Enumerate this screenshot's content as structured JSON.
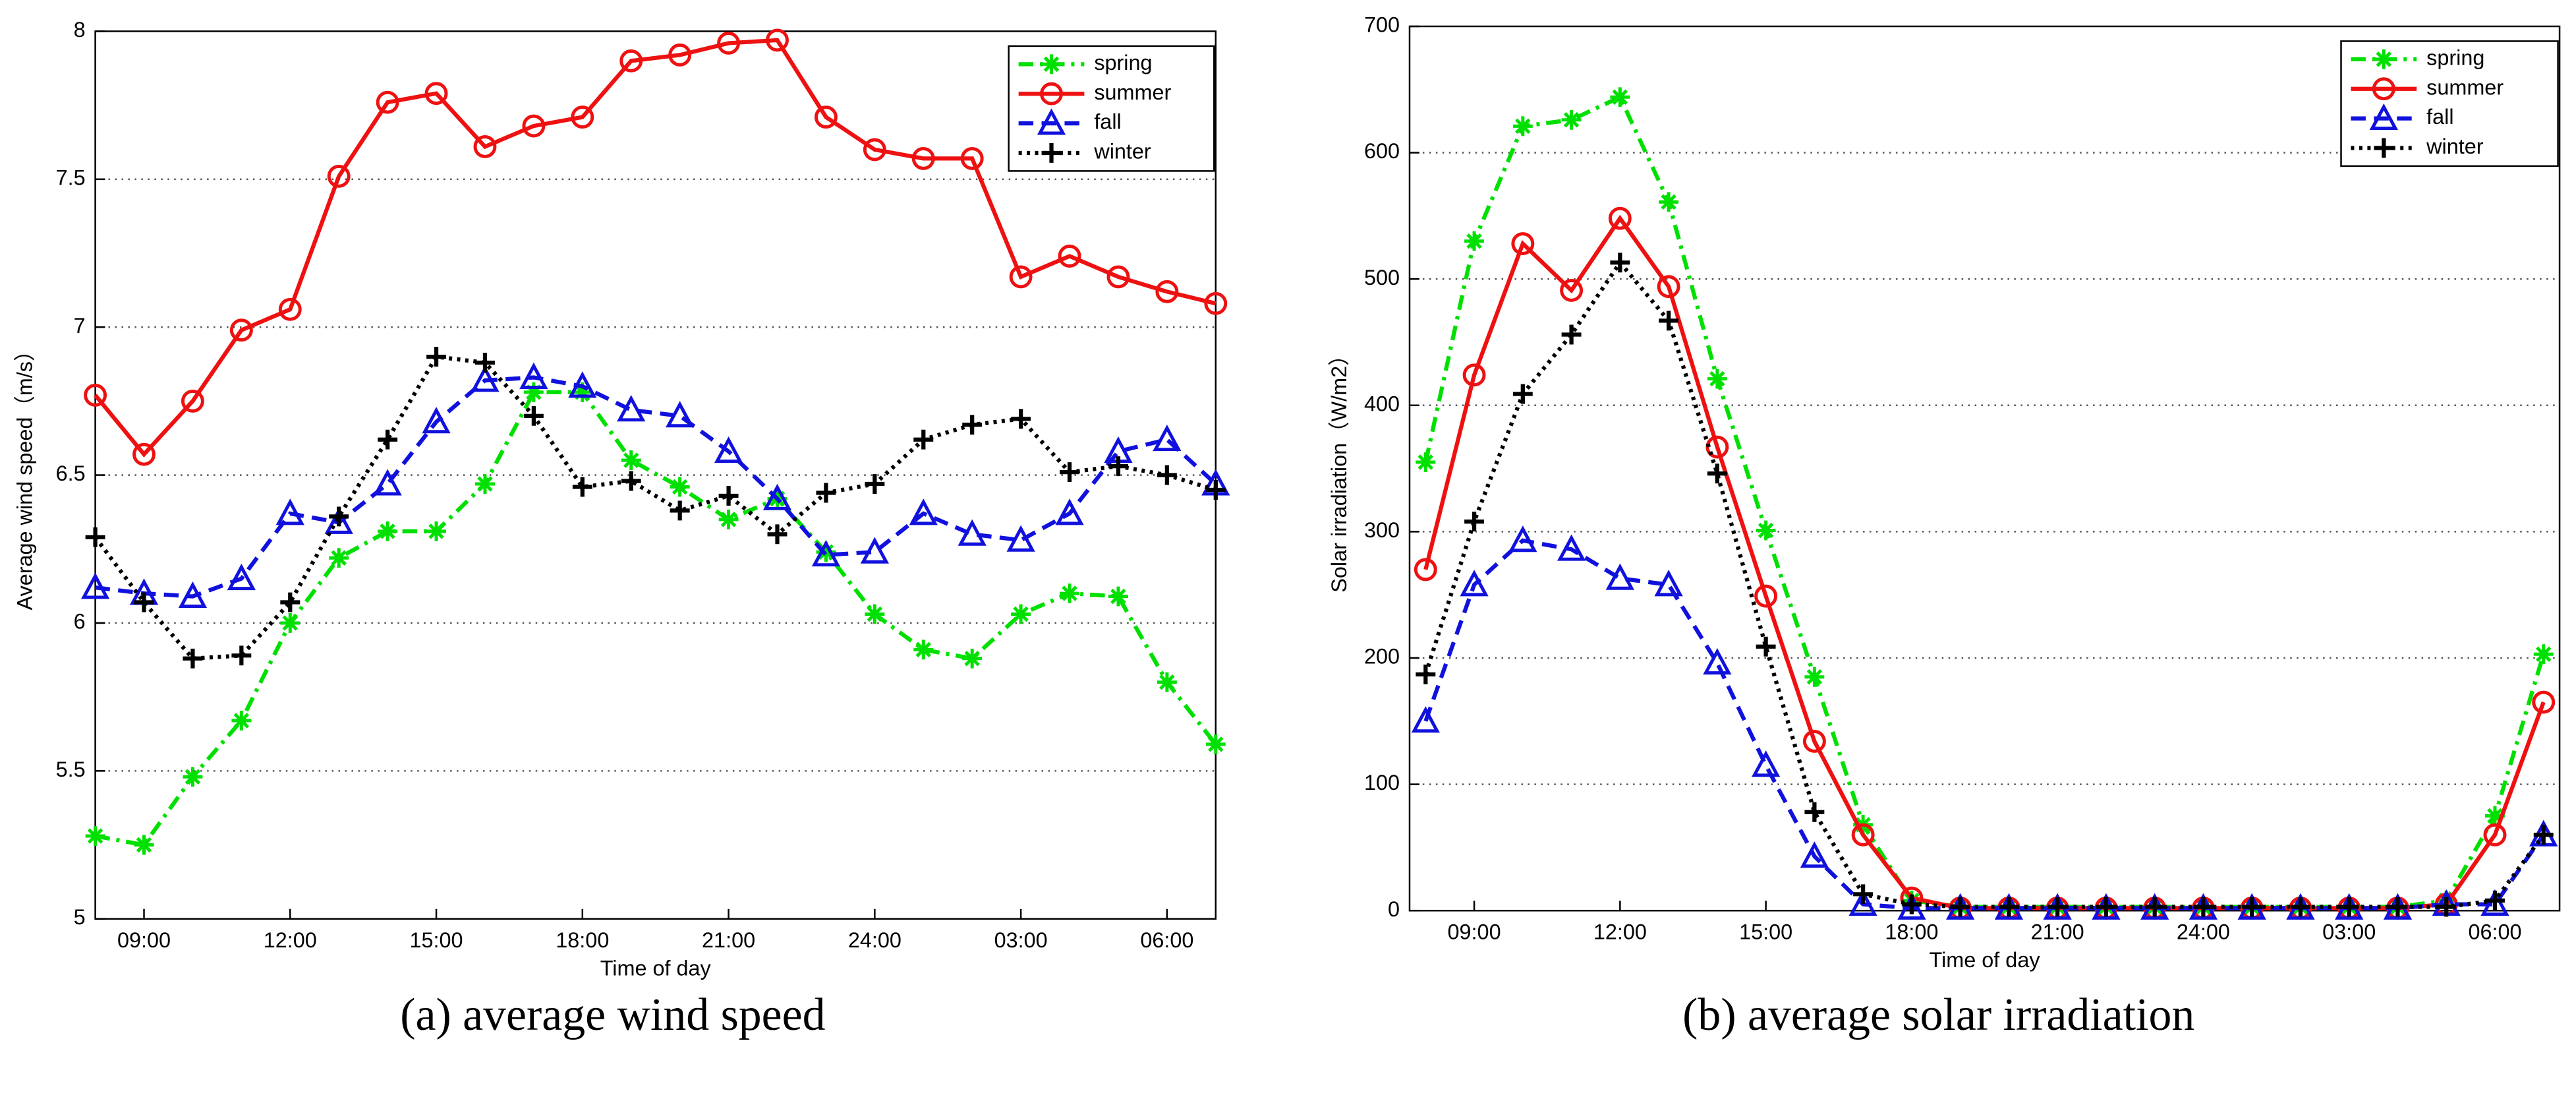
{
  "chart_data": [
    {
      "type": "line",
      "caption": "(a)  average wind speed",
      "x_label": "Time of day",
      "y_label": "Average wind speed（m/s）",
      "categories": [
        null,
        "09:00",
        null,
        null,
        "12:00",
        null,
        null,
        "15:00",
        null,
        null,
        "18:00",
        null,
        null,
        "21:00",
        null,
        null,
        "24:00",
        null,
        null,
        "03:00",
        null,
        null,
        "06:00",
        null
      ],
      "ylim": [
        5,
        8
      ],
      "yticks": [
        5,
        5.5,
        6,
        6.5,
        7,
        7.5,
        8
      ],
      "grid": true,
      "legend": "upper right",
      "series": [
        {
          "name": "spring",
          "color": "#00e000",
          "linestyle": "dashdot",
          "marker": "star",
          "values": [
            5.28,
            5.25,
            5.48,
            5.67,
            6.0,
            6.22,
            6.31,
            6.31,
            6.47,
            6.78,
            6.78,
            6.55,
            6.46,
            6.35,
            6.42,
            6.24,
            6.03,
            5.91,
            5.88,
            6.03,
            6.1,
            6.09,
            5.8,
            5.59
          ]
        },
        {
          "name": "summer",
          "color": "#ee1111",
          "linestyle": "solid",
          "marker": "circle",
          "values": [
            6.77,
            6.57,
            6.75,
            6.99,
            7.06,
            7.51,
            7.76,
            7.79,
            7.61,
            7.68,
            7.71,
            7.9,
            7.92,
            7.96,
            7.97,
            7.71,
            7.6,
            7.57,
            7.57,
            7.17,
            7.24,
            7.17,
            7.12,
            7.08
          ]
        },
        {
          "name": "fall",
          "color": "#1111dd",
          "linestyle": "dashed",
          "marker": "triangle",
          "values": [
            6.12,
            6.1,
            6.09,
            6.15,
            6.37,
            6.34,
            6.47,
            6.68,
            6.82,
            6.83,
            6.8,
            6.72,
            6.7,
            6.58,
            6.42,
            6.23,
            6.24,
            6.37,
            6.3,
            6.28,
            6.37,
            6.58,
            6.62,
            6.47
          ]
        },
        {
          "name": "winter",
          "color": "#000000",
          "linestyle": "dotted",
          "marker": "plus",
          "values": [
            6.29,
            6.07,
            5.88,
            5.89,
            6.07,
            6.36,
            6.62,
            6.9,
            6.88,
            6.7,
            6.46,
            6.48,
            6.38,
            6.43,
            6.3,
            6.44,
            6.47,
            6.62,
            6.67,
            6.69,
            6.51,
            6.53,
            6.5,
            6.45
          ]
        }
      ]
    },
    {
      "type": "line",
      "caption": "(b)  average solar irradiation",
      "x_label": "Time of day",
      "y_label": "Solar irradiation（W/m2）",
      "categories": [
        null,
        "09:00",
        null,
        null,
        "12:00",
        null,
        null,
        "15:00",
        null,
        null,
        "18:00",
        null,
        null,
        "21:00",
        null,
        null,
        "24:00",
        null,
        null,
        "03:00",
        null,
        null,
        "06:00",
        null
      ],
      "ylim": [
        0,
        700
      ],
      "yticks": [
        0,
        100,
        200,
        300,
        400,
        500,
        600,
        700
      ],
      "grid": true,
      "legend": "upper right",
      "series": [
        {
          "name": "spring",
          "color": "#00e000",
          "linestyle": "dashdot",
          "marker": "star",
          "values": [
            355,
            530,
            621,
            626,
            644,
            561,
            421,
            301,
            185,
            68,
            8,
            3,
            3,
            3,
            3,
            3,
            3,
            3,
            3,
            3,
            3,
            8,
            75,
            203
          ]
        },
        {
          "name": "summer",
          "color": "#ee1111",
          "linestyle": "solid",
          "marker": "circle",
          "values": [
            270,
            424,
            528,
            491,
            548,
            494,
            367,
            249,
            134,
            60,
            10,
            2,
            2,
            2,
            2,
            2,
            2,
            2,
            2,
            2,
            2,
            5,
            60,
            165
          ]
        },
        {
          "name": "fall",
          "color": "#1111dd",
          "linestyle": "dashed",
          "marker": "triangle",
          "values": [
            150,
            258,
            293,
            286,
            263,
            258,
            196,
            115,
            43,
            5,
            2,
            2,
            2,
            2,
            2,
            2,
            2,
            2,
            2,
            2,
            2,
            5,
            5,
            60
          ]
        },
        {
          "name": "winter",
          "color": "#000000",
          "linestyle": "dotted",
          "marker": "plus",
          "values": [
            187,
            308,
            409,
            456,
            513,
            467,
            346,
            209,
            78,
            13,
            5,
            3,
            3,
            3,
            3,
            3,
            3,
            3,
            3,
            3,
            3,
            3,
            8,
            60
          ]
        }
      ]
    }
  ]
}
